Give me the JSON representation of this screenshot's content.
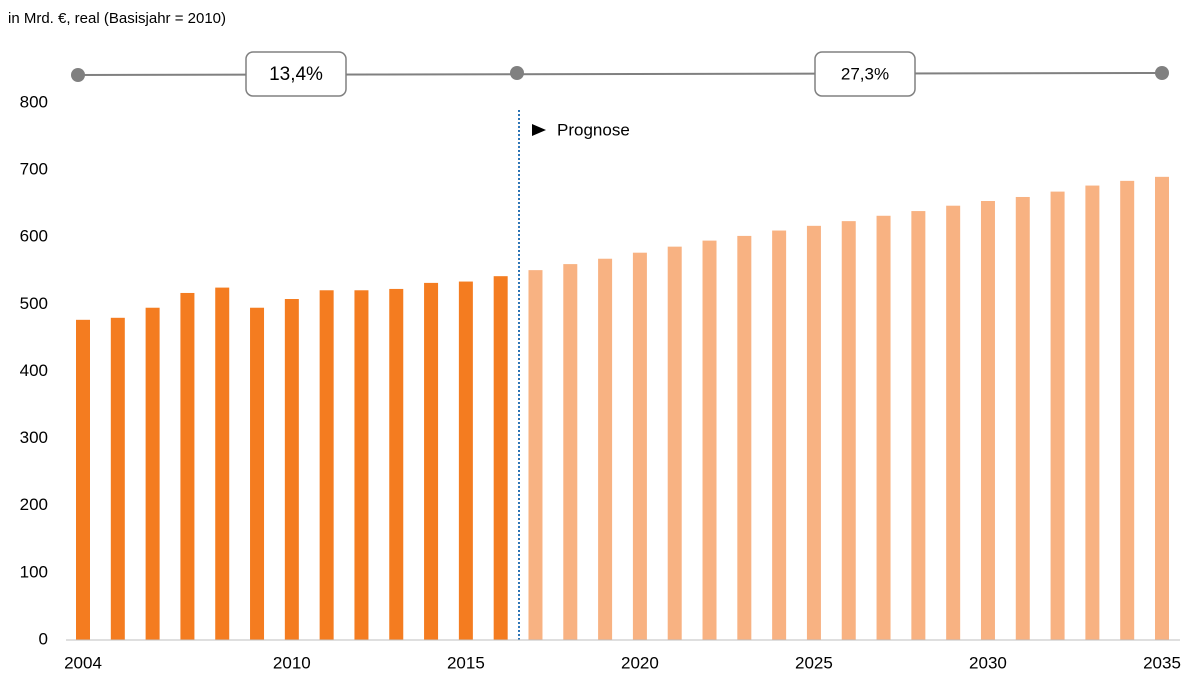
{
  "chart_data": {
    "type": "bar",
    "subtitle": "in Mrd. €, real (Basisjahr = 2010)",
    "annotation": "Prognose",
    "growth_labels": [
      "13,4%",
      "27,3%"
    ],
    "x": [
      2004,
      2005,
      2006,
      2007,
      2008,
      2009,
      2010,
      2011,
      2012,
      2013,
      2014,
      2015,
      2016,
      2017,
      2018,
      2019,
      2020,
      2021,
      2022,
      2023,
      2024,
      2025,
      2026,
      2027,
      2028,
      2029,
      2030,
      2031,
      2032,
      2033,
      2034,
      2035
    ],
    "series": [
      {
        "color": "#f47c20",
        "values": [
          477,
          480,
          495,
          517,
          525,
          495,
          508,
          521,
          521,
          523,
          532,
          534,
          542,
          null,
          null,
          null,
          null,
          null,
          null,
          null,
          null,
          null,
          null,
          null,
          null,
          null,
          null,
          null,
          null,
          null,
          null,
          null
        ]
      },
      {
        "color": "#f8b282",
        "values": [
          null,
          null,
          null,
          null,
          null,
          null,
          null,
          null,
          null,
          null,
          null,
          null,
          null,
          551,
          560,
          568,
          577,
          586,
          595,
          602,
          610,
          617,
          624,
          632,
          639,
          647,
          654,
          660,
          668,
          677,
          684,
          690
        ]
      }
    ],
    "xlim": [
      2004,
      2035
    ],
    "xticks": [
      2004,
      2010,
      2015,
      2020,
      2025,
      2030,
      2035
    ],
    "ylim": [
      0,
      800
    ],
    "yticks": [
      0,
      100,
      200,
      300,
      400,
      500,
      600,
      700,
      800
    ],
    "grid": false
  }
}
